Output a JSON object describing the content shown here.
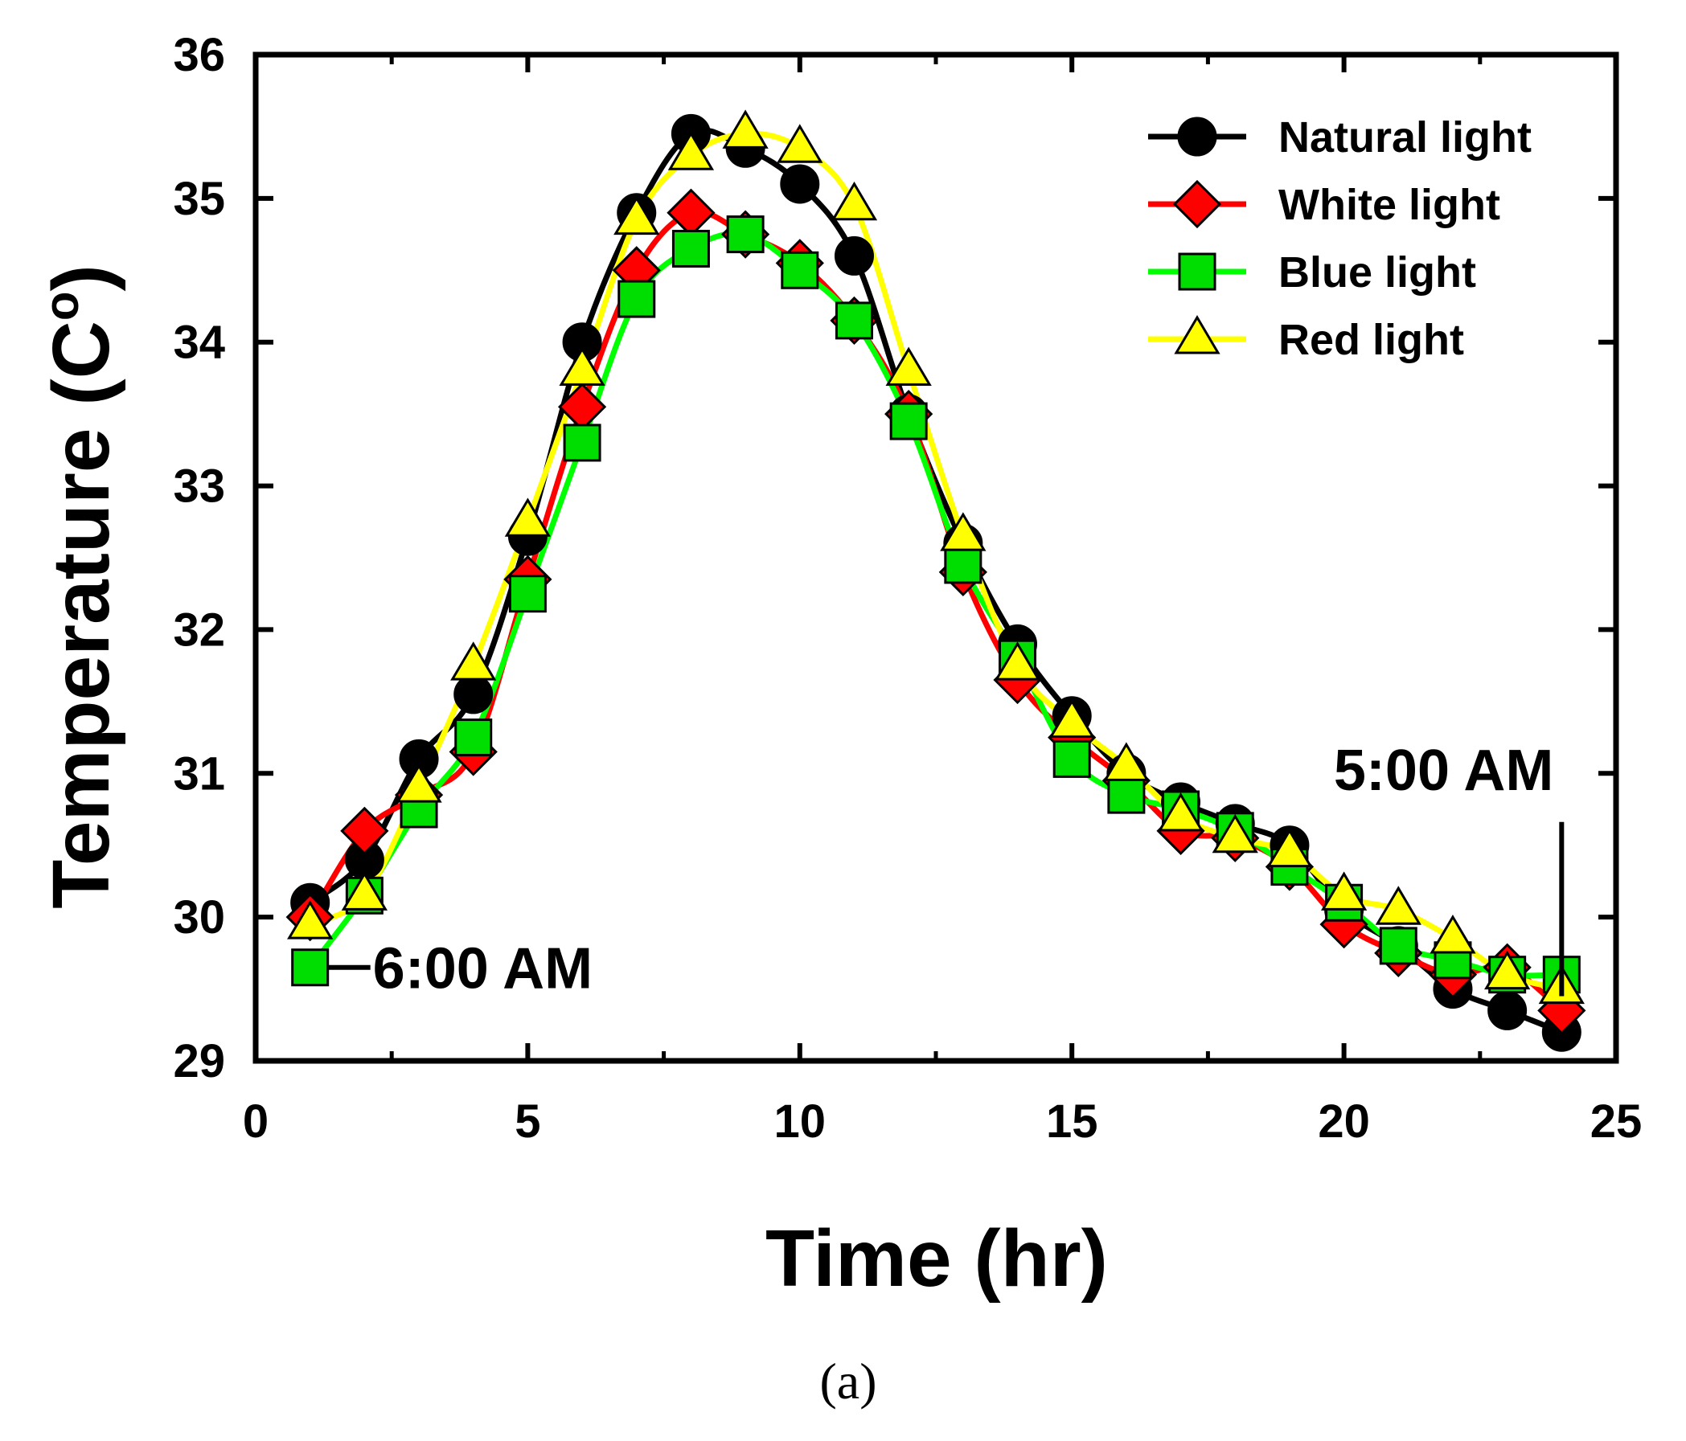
{
  "chart_data": {
    "type": "line",
    "title": "",
    "xlabel": "Time (hr)",
    "ylabel_main": "Temperature (C",
    "ylabel_sup": "o",
    "ylabel_close": ")",
    "xlim": [
      0,
      25
    ],
    "ylim": [
      29,
      36
    ],
    "xticks": [
      0,
      5,
      10,
      15,
      20,
      25
    ],
    "yticks": [
      29,
      30,
      31,
      32,
      33,
      34,
      35,
      36
    ],
    "grid": false,
    "legend_position": "top-right",
    "caption": "(a)",
    "x": [
      1,
      2,
      3,
      4,
      5,
      6,
      7,
      8,
      9,
      10,
      11,
      12,
      13,
      14,
      15,
      16,
      17,
      18,
      19,
      20,
      21,
      22,
      23,
      24
    ],
    "series": [
      {
        "name": "Natural light",
        "color": "#000000",
        "marker": "circle",
        "marker_fill": "#000000",
        "values": [
          30.1,
          30.4,
          31.1,
          31.55,
          32.65,
          34.0,
          34.9,
          35.45,
          35.35,
          35.1,
          34.6,
          33.5,
          32.6,
          31.9,
          31.4,
          31.0,
          30.8,
          30.65,
          30.5,
          30.05,
          29.8,
          29.5,
          29.35,
          29.2
        ]
      },
      {
        "name": "White light",
        "color": "#ff0000",
        "marker": "diamond",
        "marker_fill": "#ff0000",
        "values": [
          30.0,
          30.6,
          30.85,
          31.15,
          32.35,
          33.55,
          34.5,
          34.9,
          34.75,
          34.55,
          34.15,
          33.5,
          32.4,
          31.65,
          31.25,
          30.95,
          30.6,
          30.55,
          30.35,
          29.95,
          29.75,
          29.6,
          29.65,
          29.35
        ]
      },
      {
        "name": "Blue light",
        "color": "#00ff00",
        "marker": "square",
        "marker_fill": "#00dd00",
        "values": [
          29.65,
          30.15,
          30.75,
          31.25,
          32.25,
          33.3,
          34.3,
          34.65,
          34.75,
          34.5,
          34.15,
          33.45,
          32.45,
          31.8,
          31.1,
          30.85,
          30.75,
          30.6,
          30.35,
          30.1,
          29.8,
          29.7,
          29.6,
          29.6
        ]
      },
      {
        "name": "Red light",
        "color": "#ffff00",
        "marker": "triangle",
        "marker_fill": "#ffff00",
        "values": [
          29.95,
          30.15,
          30.9,
          31.75,
          32.75,
          33.8,
          34.85,
          35.3,
          35.45,
          35.35,
          34.95,
          33.8,
          32.65,
          31.75,
          31.35,
          31.05,
          30.7,
          30.55,
          30.45,
          30.15,
          30.05,
          29.85,
          29.6,
          29.5
        ]
      }
    ],
    "annotations": [
      {
        "text": "6:00 AM",
        "x": 1,
        "y": 29.65,
        "anchor": "right-of-point"
      },
      {
        "text": "5:00 AM",
        "x": 24,
        "y": 30.55,
        "anchor": "above-left-of-point"
      }
    ]
  }
}
